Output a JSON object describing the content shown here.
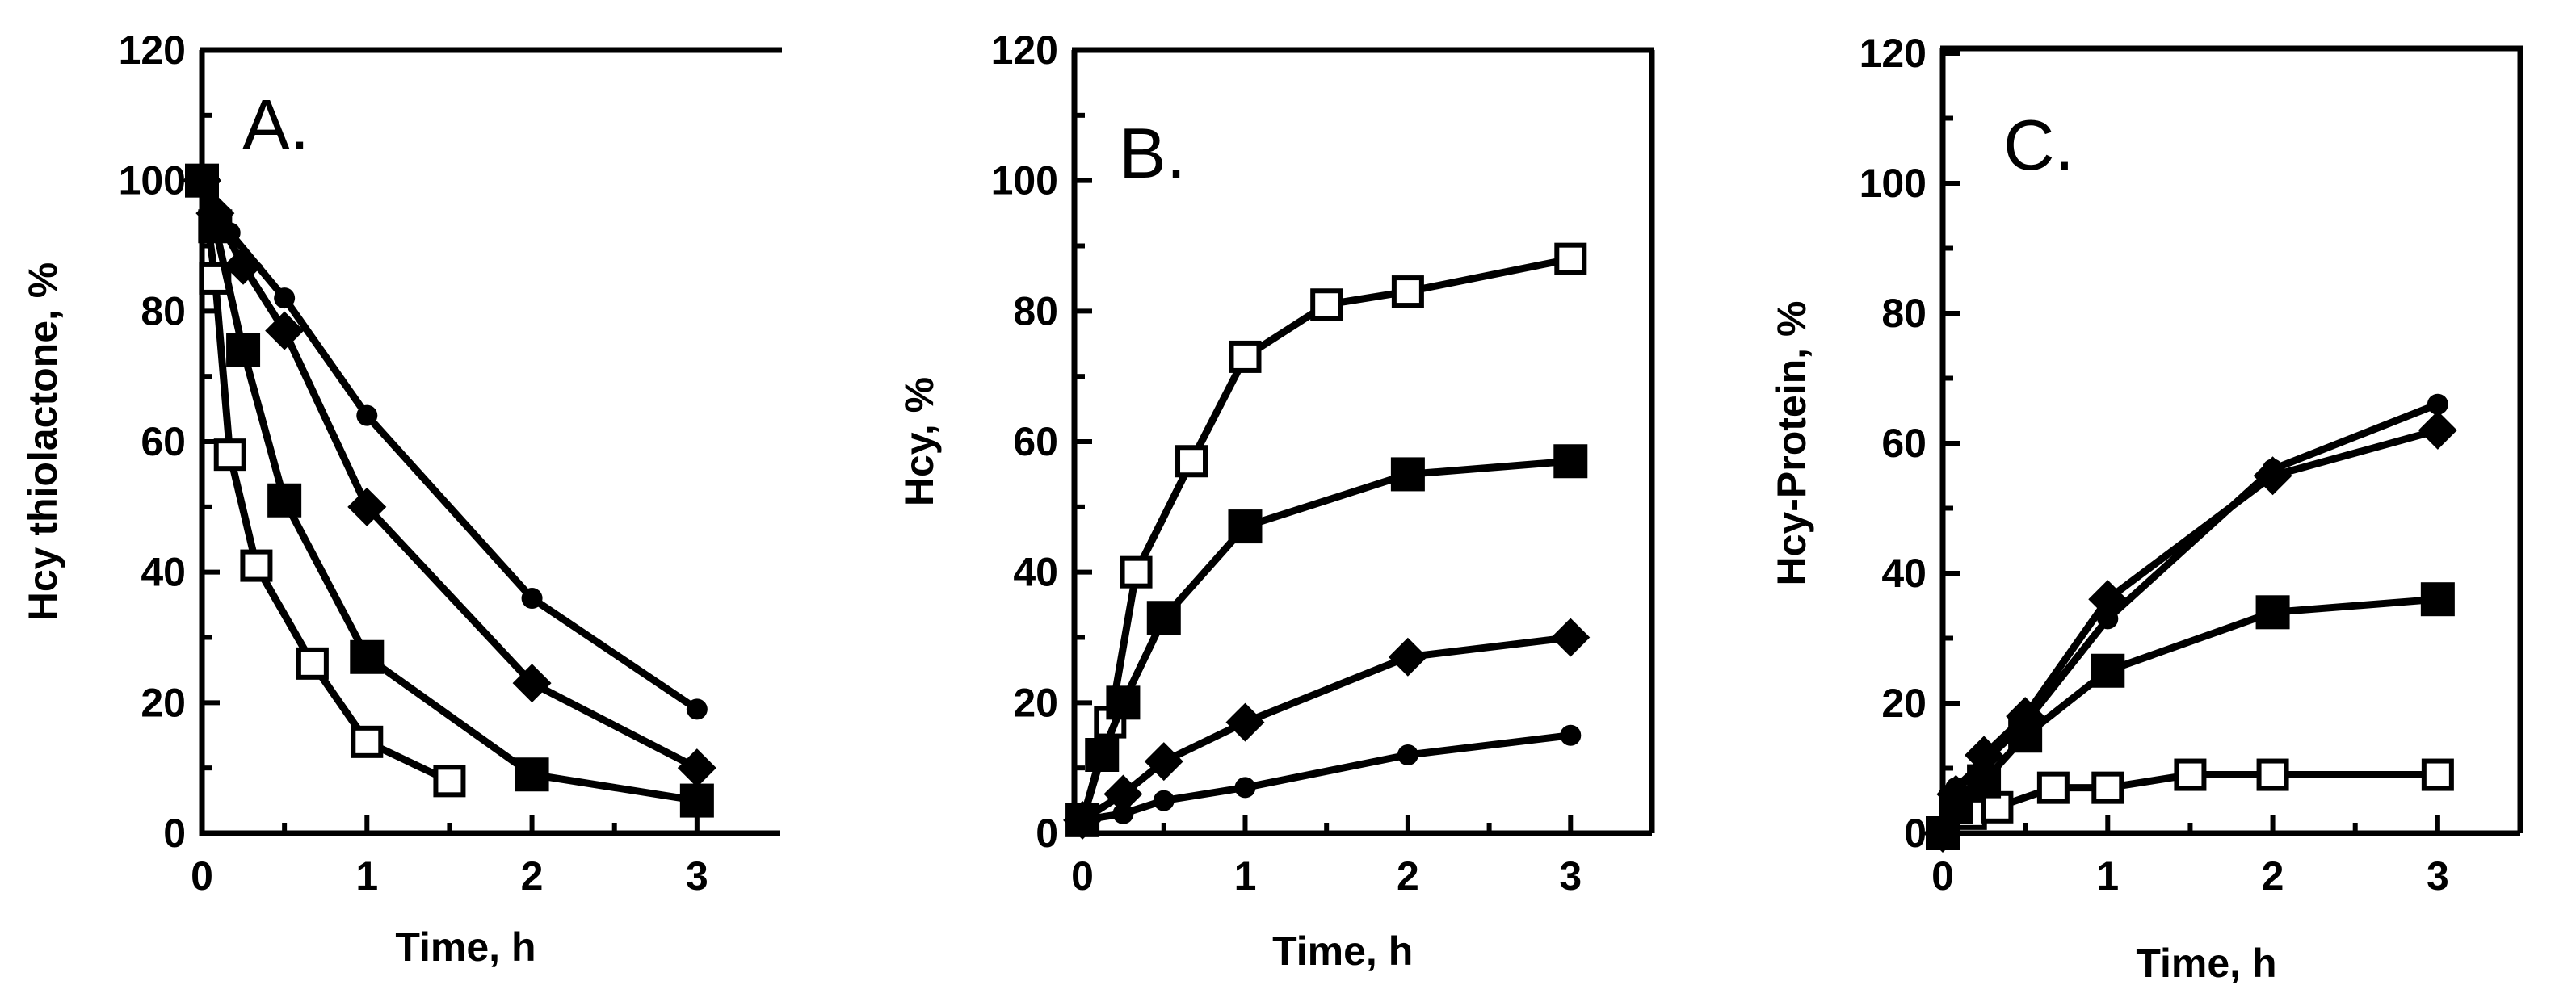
{
  "chart_data": [
    {
      "type": "line",
      "panel_label": "A.",
      "xlabel": "Time, h",
      "ylabel": "Hcy thiolactone, %",
      "xlim": [
        0,
        3.5
      ],
      "ylim": [
        0,
        120
      ],
      "xticks": [
        0,
        1,
        2,
        3
      ],
      "yticks": [
        0,
        20,
        40,
        60,
        80,
        100,
        120
      ],
      "series": [
        {
          "marker": "open-square",
          "x": [
            0,
            0.08,
            0.17,
            0.33,
            0.67,
            1.0,
            1.5
          ],
          "y": [
            100,
            85,
            58,
            41,
            26,
            14,
            8
          ]
        },
        {
          "marker": "filled-square",
          "x": [
            0,
            0.08,
            0.25,
            0.5,
            1.0,
            2.0,
            3.0
          ],
          "y": [
            100,
            93,
            74,
            51,
            27,
            9,
            5
          ]
        },
        {
          "marker": "filled-diamond",
          "x": [
            0,
            0.08,
            0.25,
            0.5,
            1.0,
            2.0,
            3.0
          ],
          "y": [
            100,
            95,
            87,
            77,
            50,
            23,
            10
          ]
        },
        {
          "marker": "filled-circle",
          "x": [
            0,
            0.17,
            0.5,
            1.0,
            2.0,
            3.0
          ],
          "y": [
            100,
            92,
            82,
            64,
            36,
            19
          ]
        }
      ]
    },
    {
      "type": "line",
      "panel_label": "B.",
      "xlabel": "Time, h",
      "ylabel": "Hcy, %",
      "xlim": [
        -0.05,
        3.5
      ],
      "ylim": [
        0,
        120
      ],
      "xticks": [
        0,
        1,
        2,
        3
      ],
      "yticks": [
        0,
        20,
        40,
        60,
        80,
        100,
        120
      ],
      "series": [
        {
          "marker": "open-square",
          "x": [
            0,
            0.17,
            0.33,
            0.67,
            1.0,
            1.5,
            2.0,
            3.0
          ],
          "y": [
            2,
            17,
            40,
            57,
            73,
            81,
            83,
            88
          ]
        },
        {
          "marker": "filled-square",
          "x": [
            0,
            0.12,
            0.25,
            0.5,
            1.0,
            2.0,
            3.0
          ],
          "y": [
            2,
            12,
            20,
            33,
            47,
            55,
            57
          ]
        },
        {
          "marker": "filled-diamond",
          "x": [
            0,
            0.25,
            0.5,
            1.0,
            2.0,
            3.0
          ],
          "y": [
            2,
            6,
            11,
            17,
            27,
            30
          ]
        },
        {
          "marker": "filled-circle",
          "x": [
            0,
            0.25,
            0.5,
            1.0,
            2.0,
            3.0
          ],
          "y": [
            2,
            3,
            5,
            7,
            12,
            15
          ]
        }
      ]
    },
    {
      "type": "line",
      "panel_label": "C.",
      "xlabel": "Time, h",
      "ylabel": "Hcy-Protein, %",
      "xlim": [
        0,
        3.5
      ],
      "ylim": [
        0,
        120
      ],
      "xticks": [
        0,
        1,
        2,
        3
      ],
      "yticks": [
        0,
        20,
        40,
        60,
        80,
        100,
        120
      ],
      "series": [
        {
          "marker": "open-square",
          "x": [
            0,
            0.17,
            0.33,
            0.67,
            1.0,
            1.5,
            2.0,
            3.0
          ],
          "y": [
            0,
            3,
            4,
            7,
            7,
            9,
            9,
            9
          ]
        },
        {
          "marker": "filled-square",
          "x": [
            0,
            0.08,
            0.25,
            0.5,
            1.0,
            2.0,
            3.0
          ],
          "y": [
            0,
            4,
            8,
            15,
            25,
            34,
            36
          ]
        },
        {
          "marker": "filled-diamond",
          "x": [
            0,
            0.08,
            0.25,
            0.5,
            1.0,
            2.0,
            3.0
          ],
          "y": [
            0,
            6,
            12,
            18,
            36,
            55,
            62
          ]
        },
        {
          "marker": "filled-circle",
          "x": [
            0,
            0.08,
            0.25,
            0.5,
            1.0,
            2.0,
            3.0
          ],
          "y": [
            0,
            7,
            11,
            17,
            33,
            56,
            66
          ]
        }
      ]
    }
  ]
}
